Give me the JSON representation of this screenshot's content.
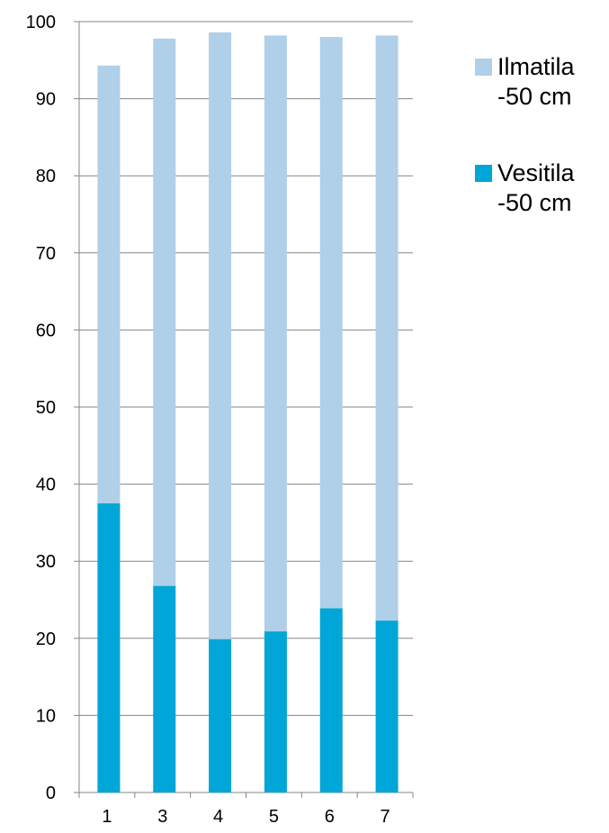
{
  "chart_data": {
    "type": "stacked_bar",
    "categories": [
      "1",
      "3",
      "4",
      "5",
      "6",
      "7"
    ],
    "series": [
      {
        "name": "Ilmatila -50 cm",
        "color": "#b0cfe8",
        "values": [
          56.8,
          71.0,
          78.7,
          77.3,
          74.1,
          75.9
        ]
      },
      {
        "name": "Vesitila -50 cm",
        "color": "#00a6d7",
        "values": [
          37.5,
          26.8,
          19.9,
          20.9,
          23.9,
          22.3
        ]
      }
    ],
    "ylim": [
      0,
      100
    ],
    "yticks": [
      0,
      10,
      20,
      30,
      40,
      50,
      60,
      70,
      80,
      90,
      100
    ],
    "grid": true,
    "legend": "right"
  }
}
